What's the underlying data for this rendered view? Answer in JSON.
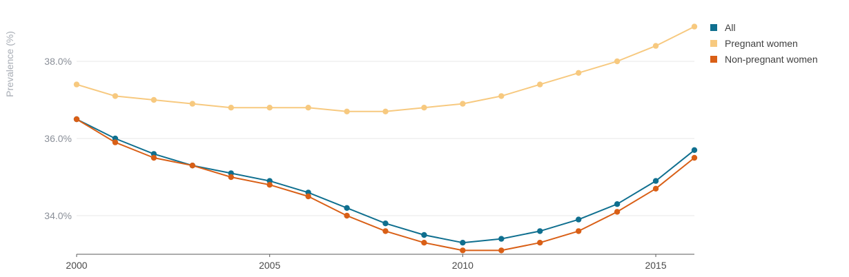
{
  "chart_data": {
    "type": "line",
    "title": "",
    "xlabel": "",
    "ylabel": "Prevalence (%)",
    "x": [
      2000,
      2001,
      2002,
      2003,
      2004,
      2005,
      2006,
      2007,
      2008,
      2009,
      2010,
      2011,
      2012,
      2013,
      2014,
      2015,
      2016
    ],
    "x_ticks": [
      "2000",
      "2005",
      "2010",
      "2015"
    ],
    "y_ticks": [
      "34.0%",
      "36.0%",
      "38.0%"
    ],
    "ylim": [
      33.0,
      39.0
    ],
    "grid": true,
    "legend_position": "right",
    "series": [
      {
        "name": "All",
        "color": "#0f6f8f",
        "values": [
          36.5,
          36.0,
          35.6,
          35.3,
          35.1,
          34.9,
          34.6,
          34.2,
          33.8,
          33.5,
          33.3,
          33.4,
          33.6,
          33.9,
          34.3,
          34.9,
          35.7
        ]
      },
      {
        "name": "Pregnant women",
        "color": "#f7c97f",
        "values": [
          37.4,
          37.1,
          37.0,
          36.9,
          36.8,
          36.8,
          36.8,
          36.7,
          36.7,
          36.8,
          36.9,
          37.1,
          37.4,
          37.7,
          38.0,
          38.4,
          38.9
        ]
      },
      {
        "name": "Non-pregnant women",
        "color": "#d95f16",
        "values": [
          36.5,
          35.9,
          35.5,
          35.3,
          35.0,
          34.8,
          34.5,
          34.0,
          33.6,
          33.3,
          33.1,
          33.1,
          33.3,
          33.6,
          34.1,
          34.7,
          35.5
        ]
      }
    ]
  }
}
